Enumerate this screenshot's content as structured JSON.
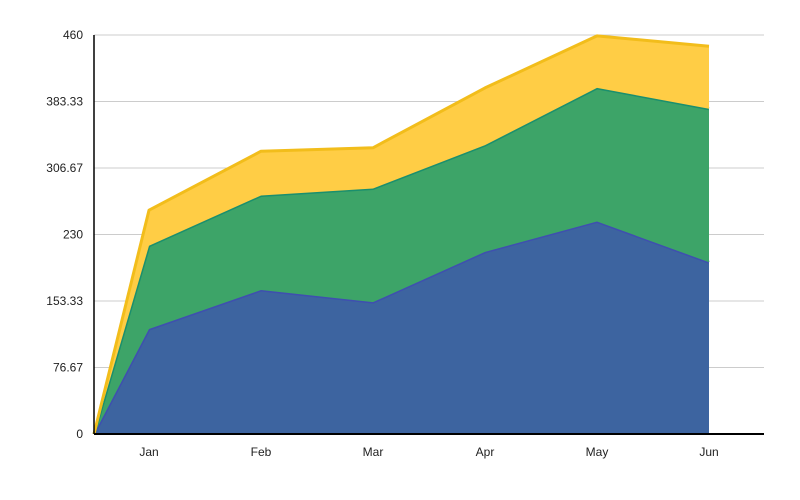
{
  "chart_data": {
    "type": "area",
    "stacked": true,
    "categories": [
      "",
      "Jan",
      "Feb",
      "Mar",
      "Apr",
      "May",
      "Jun"
    ],
    "series": [
      {
        "values": [
          0,
          121,
          166,
          152,
          210,
          245,
          198
        ]
      },
      {
        "values": [
          0,
          96,
          109,
          131,
          123,
          154,
          177
        ]
      },
      {
        "values": [
          0,
          41,
          51,
          47,
          66,
          60,
          72
        ]
      }
    ],
    "colors": {
      "fills": [
        "#3d64a0",
        "#3da468",
        "#ffcd45"
      ],
      "strokes": [
        "#3f4fb0",
        "#1a8f6e",
        "#f2bd1b"
      ]
    },
    "ylim": [
      0,
      460
    ],
    "yticks": [
      "0",
      "76.67",
      "153.33",
      "230",
      "306.67",
      "383.33",
      "460"
    ],
    "grid": true,
    "legend": "none",
    "title": "",
    "xlabel": "",
    "ylabel": ""
  }
}
